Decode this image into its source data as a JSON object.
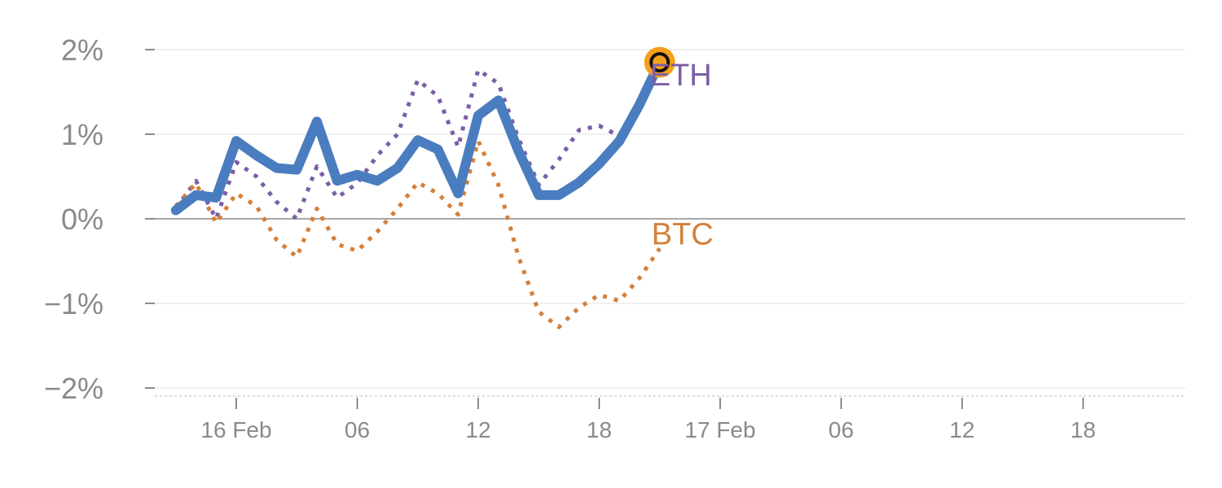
{
  "chart_data": {
    "type": "line",
    "x_unit": "hour",
    "x_range_hours": [
      -3,
      48
    ],
    "x_ticks": [
      {
        "hour": 0,
        "label": "16 Feb"
      },
      {
        "hour": 6,
        "label": "06"
      },
      {
        "hour": 12,
        "label": "12"
      },
      {
        "hour": 18,
        "label": "18"
      },
      {
        "hour": 24,
        "label": "17 Feb"
      },
      {
        "hour": 30,
        "label": "06"
      },
      {
        "hour": 36,
        "label": "12"
      },
      {
        "hour": 42,
        "label": "18"
      }
    ],
    "y_unit": "%",
    "ylim": [
      -2.1,
      2.0
    ],
    "y_ticks": [
      {
        "value": 2,
        "label": "2%"
      },
      {
        "value": 1,
        "label": "1%"
      },
      {
        "value": 0,
        "label": "0%"
      },
      {
        "value": -1,
        "label": "−1%"
      },
      {
        "value": -2,
        "label": "−2%"
      }
    ],
    "grid": true,
    "zero_line": true,
    "series": [
      {
        "id": "eth-dotted",
        "name": "ETH",
        "color": "#7b5ea7",
        "style": "dotted",
        "x": [
          -3,
          -2,
          -1,
          0,
          1,
          2,
          3,
          4,
          5,
          6,
          7,
          8,
          9,
          10,
          11,
          12,
          13,
          14,
          15,
          16,
          17,
          18,
          19,
          20,
          21
        ],
        "values": [
          0.12,
          0.45,
          0.0,
          0.67,
          0.5,
          0.2,
          0.0,
          0.62,
          0.25,
          0.42,
          0.75,
          1.0,
          1.64,
          1.45,
          0.85,
          1.76,
          1.6,
          0.95,
          0.4,
          0.7,
          1.05,
          1.1,
          0.98,
          1.4,
          1.78
        ]
      },
      {
        "id": "btc-dotted",
        "name": "BTC",
        "color": "#d4803a",
        "style": "dotted",
        "x": [
          -3,
          -2,
          -1,
          0,
          1,
          2,
          3,
          4,
          5,
          6,
          7,
          8,
          9,
          10,
          11,
          12,
          13,
          14,
          15,
          16,
          17,
          18,
          19,
          20,
          21
        ],
        "values": [
          0.15,
          0.42,
          -0.05,
          0.3,
          0.15,
          -0.25,
          -0.45,
          0.12,
          -0.3,
          -0.38,
          -0.15,
          0.12,
          0.43,
          0.3,
          0.05,
          0.92,
          0.4,
          -0.45,
          -1.1,
          -1.28,
          -1.05,
          -0.9,
          -0.97,
          -0.7,
          -0.35
        ]
      },
      {
        "id": "main-solid",
        "color": "#4a7dbf",
        "style": "solid",
        "x": [
          -3,
          -2,
          -1,
          0,
          1,
          2,
          3,
          4,
          5,
          6,
          7,
          8,
          9,
          10,
          11,
          12,
          13,
          14,
          15,
          16,
          17,
          18,
          19,
          20,
          21
        ],
        "values": [
          0.1,
          0.28,
          0.25,
          0.92,
          0.75,
          0.6,
          0.58,
          1.15,
          0.45,
          0.52,
          0.45,
          0.6,
          0.93,
          0.82,
          0.3,
          1.22,
          1.4,
          0.8,
          0.28,
          0.28,
          0.43,
          0.65,
          0.92,
          1.35,
          1.85
        ]
      }
    ],
    "labels": [
      {
        "text": "ETH",
        "series": "eth-dotted",
        "color": "#7b5ea7"
      },
      {
        "text": "BTC",
        "series": "btc-dotted",
        "color": "#d4803a"
      }
    ],
    "end_marker": {
      "series": "main-solid",
      "fill": "#f5a01a",
      "ring": "#111111"
    }
  }
}
